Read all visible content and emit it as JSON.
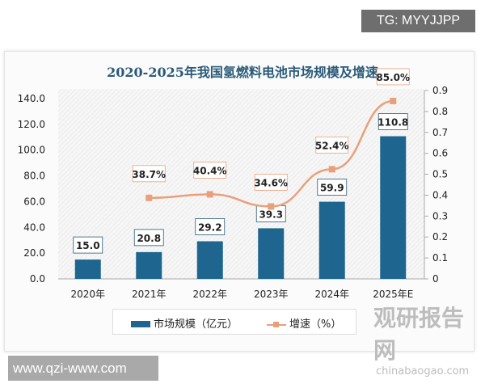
{
  "watermark_top": "TG: MYYJJPP",
  "watermark_bottom": "www.qzi-www.com",
  "logo": {
    "name": "观研报告网",
    "url": "chinabaogao.com"
  },
  "colors": {
    "bar": "#1e6690",
    "line": "#e9a07a",
    "title": "#2a5a78"
  },
  "chart_data": {
    "type": "bar+line",
    "title": "2020-2025年我国氢燃料电池市场规模及增速",
    "categories": [
      "2020年",
      "2021年",
      "2022年",
      "2023年",
      "2024年",
      "2025年E"
    ],
    "series": [
      {
        "name": "市场规模（亿元）",
        "type": "bar",
        "axis": "left",
        "values": [
          15.0,
          20.8,
          29.2,
          39.3,
          59.9,
          110.8
        ],
        "labels": [
          "15.0",
          "20.8",
          "29.2",
          "39.3",
          "59.9",
          "110.8"
        ]
      },
      {
        "name": "增速（%）",
        "type": "line",
        "axis": "right",
        "values": [
          null,
          0.387,
          0.404,
          0.346,
          0.524,
          0.85
        ],
        "labels": [
          "",
          "38.7%",
          "40.4%",
          "34.6%",
          "52.4%",
          "85.0%"
        ]
      }
    ],
    "left_axis": {
      "ylim": [
        0,
        140
      ],
      "ticks": [
        "0.0",
        "20.0",
        "40.0",
        "60.0",
        "80.0",
        "100.0",
        "120.0",
        "140.0"
      ]
    },
    "right_axis": {
      "ylim": [
        0,
        0.9
      ],
      "ticks": [
        "0",
        "0.1",
        "0.2",
        "0.3",
        "0.4",
        "0.5",
        "0.6",
        "0.7",
        "0.8",
        "0.9"
      ]
    },
    "legend": "bottom"
  }
}
